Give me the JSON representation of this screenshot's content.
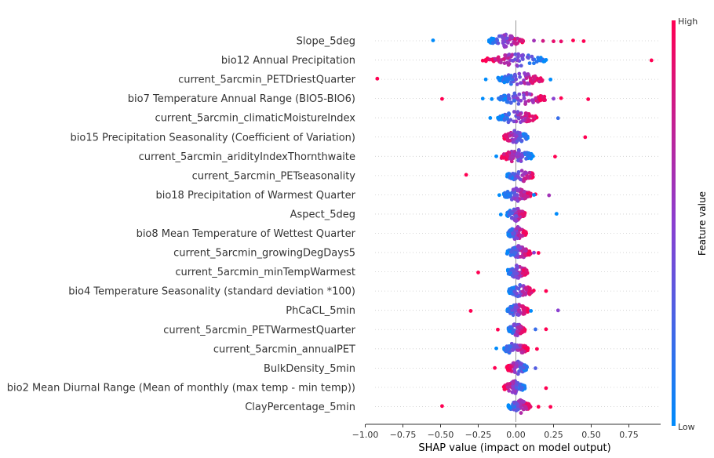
{
  "chart_data": {
    "type": "scatter",
    "subtype": "shap-beeswarm-summary",
    "xlabel": "SHAP value (impact on model output)",
    "xlim": [
      -1.05,
      0.95
    ],
    "xticks": [
      -1.0,
      -0.75,
      -0.5,
      -0.25,
      0.0,
      0.25,
      0.5,
      0.75
    ],
    "xtick_labels": [
      "−1.00",
      "−0.75",
      "−0.50",
      "−0.25",
      "0.00",
      "0.25",
      "0.50",
      "0.75"
    ],
    "colorbar": {
      "title": "Feature value",
      "high_label": "High",
      "low_label": "Low",
      "high_color": "#ff0052",
      "low_color": "#008bfb"
    },
    "grid": false,
    "features": [
      {
        "name": "Slope_5deg",
        "core": [
          -0.18,
          0.05
        ],
        "low_color_side": "left",
        "outliers": [
          [
            -0.55,
            0.0
          ],
          [
            0.45,
            1.0
          ],
          [
            0.38,
            1.0
          ],
          [
            0.3,
            0.9
          ],
          [
            0.18,
            0.8
          ],
          [
            0.12,
            0.6
          ],
          [
            0.25,
            0.9
          ]
        ]
      },
      {
        "name": "bio12 Annual Precipitation",
        "core": [
          -0.2,
          0.2
        ],
        "low_color_side": "right",
        "outliers": [
          [
            0.9,
            1.0
          ],
          [
            -0.22,
            1.0
          ],
          [
            0.2,
            0.0
          ],
          [
            0.15,
            0.1
          ]
        ]
      },
      {
        "name": "current_5arcmin_PETDriestQuarter",
        "core": [
          -0.12,
          0.18
        ],
        "low_color_side": "left",
        "outliers": [
          [
            -0.92,
            1.0
          ],
          [
            -0.2,
            0.0
          ],
          [
            0.23,
            0.0
          ]
        ]
      },
      {
        "name": "bio7 Temperature Annual Range (BIO5-BIO6)",
        "core": [
          -0.12,
          0.2
        ],
        "low_color_side": "left",
        "outliers": [
          [
            -0.49,
            1.0
          ],
          [
            0.48,
            1.0
          ],
          [
            -0.22,
            0.0
          ],
          [
            -0.16,
            0.0
          ],
          [
            0.3,
            1.0
          ],
          [
            0.25,
            0.5
          ]
        ]
      },
      {
        "name": "current_5arcmin_climaticMoistureIndex",
        "core": [
          -0.12,
          0.14
        ],
        "low_color_side": "left",
        "outliers": [
          [
            -0.17,
            0.0
          ],
          [
            0.28,
            0.2
          ]
        ]
      },
      {
        "name": "bio15 Precipitation Seasonality (Coefficient of Variation)",
        "core": [
          -0.08,
          0.08
        ],
        "low_color_side": "right",
        "outliers": [
          [
            0.46,
            1.0
          ]
        ]
      },
      {
        "name": "current_5arcmin_aridityIndexThornthwaite",
        "core": [
          -0.1,
          0.12
        ],
        "low_color_side": "right",
        "outliers": [
          [
            -0.13,
            0.0
          ],
          [
            0.26,
            1.0
          ]
        ]
      },
      {
        "name": "current_5arcmin_PETseasonality",
        "core": [
          -0.06,
          0.12
        ],
        "low_color_side": "left",
        "outliers": [
          [
            -0.33,
            1.0
          ]
        ]
      },
      {
        "name": "bio18 Precipitation of Warmest Quarter",
        "core": [
          -0.08,
          0.1
        ],
        "low_color_side": "left",
        "outliers": [
          [
            -0.11,
            0.0
          ],
          [
            0.13,
            1.0
          ],
          [
            0.22,
            0.6
          ],
          [
            0.12,
            0.0
          ]
        ]
      },
      {
        "name": "Aspect_5deg",
        "core": [
          -0.06,
          0.06
        ],
        "low_color_side": "left",
        "outliers": [
          [
            -0.1,
            0.0
          ],
          [
            0.27,
            0.0
          ]
        ]
      },
      {
        "name": "bio8 Mean Temperature of Wettest Quarter",
        "core": [
          -0.06,
          0.07
        ],
        "low_color_side": "left",
        "outliers": []
      },
      {
        "name": "current_5arcmin_growingDegDays5",
        "core": [
          -0.06,
          0.1
        ],
        "low_color_side": "left",
        "outliers": [
          [
            0.15,
            1.0
          ],
          [
            0.12,
            0.5
          ]
        ]
      },
      {
        "name": "current_5arcmin_minTempWarmest",
        "core": [
          -0.06,
          0.08
        ],
        "low_color_side": "left",
        "outliers": [
          [
            -0.25,
            1.0
          ]
        ]
      },
      {
        "name": "bio4 Temperature Seasonality (standard deviation *100)",
        "core": [
          -0.05,
          0.12
        ],
        "low_color_side": "left",
        "outliers": [
          [
            0.2,
            1.0
          ]
        ]
      },
      {
        "name": "PhCaCL_5min",
        "core": [
          -0.06,
          0.08
        ],
        "low_color_side": "left",
        "outliers": [
          [
            -0.3,
            1.0
          ],
          [
            0.28,
            0.5
          ],
          [
            0.1,
            0.0
          ]
        ]
      },
      {
        "name": "current_5arcmin_PETWarmestQuarter",
        "core": [
          -0.05,
          0.06
        ],
        "low_color_side": "left",
        "outliers": [
          [
            -0.12,
            1.0
          ],
          [
            0.2,
            1.0
          ],
          [
            0.13,
            0.2
          ]
        ]
      },
      {
        "name": "current_5arcmin_annualPET",
        "core": [
          -0.08,
          0.08
        ],
        "low_color_side": "left",
        "outliers": [
          [
            -0.13,
            0.0
          ],
          [
            0.14,
            1.0
          ]
        ]
      },
      {
        "name": "BulkDensity_5min",
        "core": [
          -0.06,
          0.08
        ],
        "low_color_side": "right",
        "outliers": [
          [
            -0.14,
            1.0
          ],
          [
            0.13,
            0.3
          ]
        ]
      },
      {
        "name": "bio2 Mean Diurnal Range (Mean of monthly (max temp - min temp))",
        "core": [
          -0.08,
          0.06
        ],
        "low_color_side": "right",
        "outliers": [
          [
            -0.08,
            1.0
          ],
          [
            0.2,
            1.0
          ]
        ]
      },
      {
        "name": "ClayPercentage_5min",
        "core": [
          -0.05,
          0.1
        ],
        "low_color_side": "left",
        "outliers": [
          [
            -0.49,
            1.0
          ],
          [
            -0.05,
            0.0
          ],
          [
            0.15,
            1.0
          ],
          [
            0.23,
            1.0
          ]
        ]
      }
    ]
  }
}
